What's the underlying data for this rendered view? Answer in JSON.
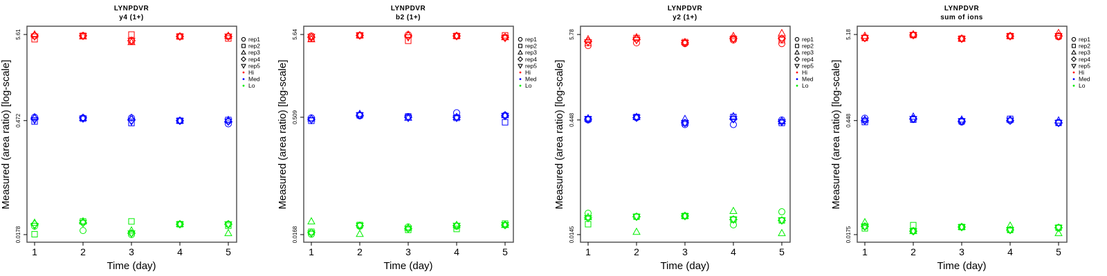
{
  "legend": {
    "reps": [
      {
        "name": "rep1",
        "shape": "circle"
      },
      {
        "name": "rep2",
        "shape": "square"
      },
      {
        "name": "rep3",
        "shape": "triangle"
      },
      {
        "name": "rep4",
        "shape": "diamond"
      },
      {
        "name": "rep5",
        "shape": "triangle-down"
      }
    ],
    "groups": [
      {
        "name": "Hi",
        "color": "#ff0000"
      },
      {
        "name": "Med",
        "color": "#0000ff"
      },
      {
        "name": "Lo",
        "color": "#00ee00"
      }
    ]
  },
  "chart_data": [
    {
      "type": "scatter",
      "title": "LYNPDVR",
      "subtitle": "y4 (1+)",
      "xlabel": "Time (day)",
      "ylabel": "Measured (area ratio) [log-scale]",
      "yscale": "log",
      "x": [
        1,
        2,
        3,
        4,
        5
      ],
      "xtick_labels": [
        "1",
        "2",
        "3",
        "4",
        "5"
      ],
      "yticks": [
        5.61,
        0.472,
        0.0178
      ],
      "ytick_labels": [
        "5.61",
        "0.472",
        "0.0178"
      ],
      "series": [
        {
          "group": "Hi",
          "reps": [
            [
              5.4,
              5.4,
              4.6,
              5.3,
              5.3
            ],
            [
              4.9,
              5.4,
              5.6,
              5.3,
              5.0
            ],
            [
              5.6,
              5.3,
              4.5,
              5.3,
              5.4
            ],
            [
              5.4,
              5.4,
              4.7,
              5.3,
              5.3
            ],
            [
              5.3,
              5.4,
              4.7,
              5.3,
              5.3
            ]
          ]
        },
        {
          "group": "Med",
          "reps": [
            [
              0.52,
              0.51,
              0.51,
              0.47,
              0.43
            ],
            [
              0.46,
              0.5,
              0.44,
              0.47,
              0.48
            ],
            [
              0.52,
              0.51,
              0.51,
              0.47,
              0.48
            ],
            [
              0.5,
              0.51,
              0.48,
              0.47,
              0.46
            ],
            [
              0.48,
              0.5,
              0.46,
              0.47,
              0.46
            ]
          ]
        },
        {
          "group": "Lo",
          "reps": [
            [
              0.0227,
              0.02,
              0.0178,
              0.024,
              0.024
            ],
            [
              0.018,
              0.026,
              0.026,
              0.024,
              0.023
            ],
            [
              0.025,
              0.026,
              0.02,
              0.024,
              0.0185
            ],
            [
              0.024,
              0.025,
              0.0185,
              0.024,
              0.024
            ],
            [
              0.023,
              0.025,
              0.0185,
              0.024,
              0.024
            ]
          ]
        }
      ]
    },
    {
      "type": "scatter",
      "title": "LYNPDVR",
      "subtitle": "b2 (1+)",
      "xlabel": "Time (day)",
      "ylabel": "Measured (area ratio) [log-scale]",
      "yscale": "log",
      "x": [
        1,
        2,
        3,
        4,
        5
      ],
      "xtick_labels": [
        "1",
        "2",
        "3",
        "4",
        "5"
      ],
      "yticks": [
        5.64,
        0.509,
        0.0168
      ],
      "ytick_labels": [
        "5.64",
        "0.509",
        "0.0168"
      ],
      "series": [
        {
          "group": "Hi",
          "reps": [
            [
              5.4,
              5.5,
              5.6,
              5.4,
              5.2
            ],
            [
              5.0,
              5.5,
              4.7,
              5.4,
              5.5
            ],
            [
              4.9,
              5.5,
              5.6,
              5.4,
              5.2
            ],
            [
              5.2,
              5.5,
              5.4,
              5.4,
              5.2
            ],
            [
              5.3,
              5.5,
              5.2,
              5.4,
              5.1
            ]
          ]
        },
        {
          "group": "Med",
          "reps": [
            [
              0.5,
              0.53,
              0.52,
              0.58,
              0.54
            ],
            [
              0.46,
              0.54,
              0.52,
              0.5,
              0.44
            ],
            [
              0.49,
              0.56,
              0.5,
              0.51,
              0.54
            ],
            [
              0.48,
              0.54,
              0.51,
              0.51,
              0.53
            ],
            [
              0.47,
              0.54,
              0.5,
              0.5,
              0.53
            ]
          ]
        },
        {
          "group": "Lo",
          "reps": [
            [
              0.017,
              0.0214,
              0.021,
              0.0214,
              0.0222
            ],
            [
              0.0182,
              0.0222,
              0.0193,
              0.0198,
              0.0231
            ],
            [
              0.0246,
              0.0171,
              0.0205,
              0.0222,
              0.0222
            ],
            [
              0.0178,
              0.0218,
              0.02,
              0.0218,
              0.0222
            ],
            [
              0.0174,
              0.0218,
              0.02,
              0.0218,
              0.0222
            ]
          ]
        }
      ]
    },
    {
      "type": "scatter",
      "title": "LYNPDVR",
      "subtitle": "y2 (1+)",
      "xlabel": "Time (day)",
      "ylabel": "Measured (area ratio) [log-scale]",
      "yscale": "log",
      "x": [
        1,
        2,
        3,
        4,
        5
      ],
      "xtick_labels": [
        "1",
        "2",
        "3",
        "4",
        "5"
      ],
      "yticks": [
        5.78,
        0.448,
        0.0145
      ],
      "ytick_labels": [
        "5.78",
        "0.448",
        "0.0145"
      ],
      "series": [
        {
          "group": "Hi",
          "reps": [
            [
              4.15,
              4.5,
              4.4,
              4.9,
              4.4
            ],
            [
              4.5,
              5.2,
              4.6,
              5.1,
              4.9
            ],
            [
              5.0,
              5.3,
              4.6,
              5.5,
              6.0
            ],
            [
              4.7,
              5.0,
              4.5,
              5.1,
              5.1
            ],
            [
              4.6,
              4.9,
              4.5,
              5.0,
              5.0
            ]
          ]
        },
        {
          "group": "Med",
          "reps": [
            [
              0.448,
              0.48,
              0.39,
              0.39,
              0.448
            ],
            [
              0.46,
              0.49,
              0.41,
              0.49,
              0.41
            ],
            [
              0.47,
              0.49,
              0.46,
              0.5,
              0.43
            ],
            [
              0.46,
              0.48,
              0.41,
              0.46,
              0.43
            ],
            [
              0.46,
              0.48,
              0.41,
              0.46,
              0.42
            ]
          ]
        },
        {
          "group": "Lo",
          "reps": [
            [
              0.0275,
              0.0248,
              0.0253,
              0.0194,
              0.0287
            ],
            [
              0.0198,
              0.0248,
              0.0253,
              0.0228,
              0.0222
            ],
            [
              0.0244,
              0.0157,
              0.0253,
              0.0293,
              0.0151
            ],
            [
              0.024,
              0.0248,
              0.0253,
              0.0228,
              0.0222
            ],
            [
              0.0238,
              0.0248,
              0.0253,
              0.0228,
              0.0222
            ]
          ]
        }
      ]
    },
    {
      "type": "scatter",
      "title": "LYNPDVR",
      "subtitle": "sum of ions",
      "xlabel": "Time (day)",
      "ylabel": "Measured (area ratio) [log-scale]",
      "yscale": "log",
      "x": [
        1,
        2,
        3,
        4,
        5
      ],
      "xtick_labels": [
        "1",
        "2",
        "3",
        "4",
        "5"
      ],
      "yticks": [
        5.18,
        0.448,
        0.0175
      ],
      "ytick_labels": [
        "5.18",
        "0.448",
        "0.0175"
      ],
      "series": [
        {
          "group": "Hi",
          "reps": [
            [
              4.7,
              5.1,
              4.6,
              4.95,
              4.85
            ],
            [
              4.7,
              5.1,
              4.6,
              4.95,
              4.95
            ],
            [
              4.97,
              5.2,
              4.6,
              4.95,
              5.4
            ],
            [
              4.7,
              5.1,
              4.6,
              4.95,
              4.95
            ],
            [
              4.7,
              5.1,
              4.6,
              4.95,
              4.95
            ]
          ]
        },
        {
          "group": "Med",
          "reps": [
            [
              0.48,
              0.47,
              0.43,
              0.448,
              0.42
            ],
            [
              0.43,
              0.46,
              0.44,
              0.47,
              0.42
            ],
            [
              0.46,
              0.5,
              0.46,
              0.46,
              0.448
            ],
            [
              0.448,
              0.47,
              0.44,
              0.448,
              0.42
            ],
            [
              0.448,
              0.47,
              0.44,
              0.448,
              0.42
            ]
          ]
        },
        {
          "group": "Lo",
          "reps": [
            [
              0.0221,
              0.0193,
              0.0217,
              0.02,
              0.0213
            ],
            [
              0.0209,
              0.0229,
              0.0217,
              0.02,
              0.0213
            ],
            [
              0.0248,
              0.0193,
              0.0217,
              0.0225,
              0.0182
            ],
            [
              0.0221,
              0.0193,
              0.0217,
              0.02,
              0.0213
            ],
            [
              0.0221,
              0.0193,
              0.0217,
              0.02,
              0.0213
            ]
          ]
        }
      ]
    }
  ]
}
